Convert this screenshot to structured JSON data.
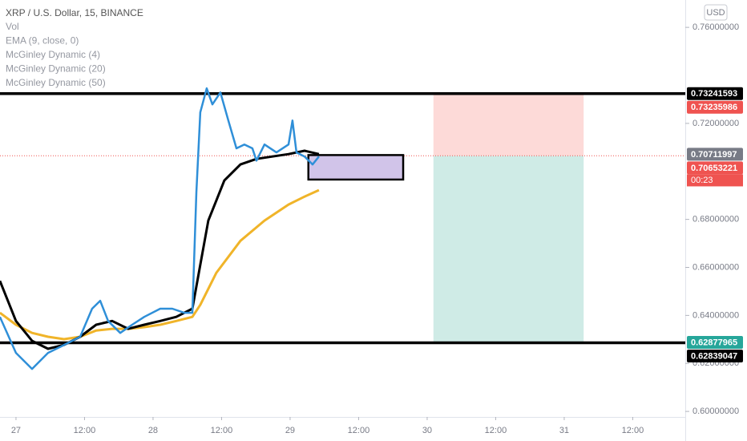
{
  "chart_data": {
    "type": "line",
    "title": "XRP / U.S. Dollar, 15, BINANCE",
    "studies": [
      "Vol",
      "EMA (9, close, 0)"
    ],
    "currency": "USD",
    "countdown": "00:23",
    "xlim": [
      -2.8,
      117.2
    ],
    "xticks": [
      {
        "value": 0,
        "label": "27"
      },
      {
        "value": 12,
        "label": "12:00"
      },
      {
        "value": 24,
        "label": "28"
      },
      {
        "value": 36,
        "label": "12:00"
      },
      {
        "value": 48,
        "label": "29"
      },
      {
        "value": 60,
        "label": "12:00"
      },
      {
        "value": 72,
        "label": "30"
      },
      {
        "value": 84,
        "label": "12:00"
      },
      {
        "value": 96,
        "label": "31"
      },
      {
        "value": 108,
        "label": "12:00"
      }
    ],
    "ylim": [
      0.5977,
      0.7714
    ],
    "yticks": [
      {
        "value": 0.76,
        "label": "0.76000000"
      },
      {
        "value": 0.72,
        "label": "0.72000000"
      },
      {
        "value": 0.68,
        "label": "0.68000000"
      },
      {
        "value": 0.66,
        "label": "0.66000000"
      },
      {
        "value": 0.64,
        "label": "0.64000000"
      },
      {
        "value": 0.62,
        "label": "0.62000000"
      },
      {
        "value": 0.6,
        "label": "0.60000000"
      }
    ],
    "series": [
      {
        "name": "McGinley Dynamic (4)",
        "color": "#2f8fd8",
        "width": 2.5,
        "x": [
          -2.81,
          0,
          2.81,
          5.61,
          8.42,
          11.23,
          13.33,
          14.74,
          16.14,
          18.25,
          20.35,
          22.46,
          25.26,
          27.37,
          29.47,
          30.88,
          31.58,
          32.28,
          33.4,
          34.39,
          35.79,
          37.19,
          38.6,
          40.0,
          41.4,
          42.11,
          43.51,
          45.61,
          47.72,
          48.42,
          49.12,
          50.53,
          51.93,
          53.05
        ],
        "values": [
          0.6394,
          0.6244,
          0.6177,
          0.6244,
          0.6277,
          0.6311,
          0.6428,
          0.6461,
          0.6377,
          0.6327,
          0.6361,
          0.6394,
          0.6428,
          0.6428,
          0.6411,
          0.6411,
          0.6912,
          0.7246,
          0.7346,
          0.7279,
          0.7329,
          0.7212,
          0.7096,
          0.7112,
          0.7096,
          0.7045,
          0.7112,
          0.7079,
          0.7112,
          0.7212,
          0.7079,
          0.7062,
          0.7029,
          0.7062
        ]
      },
      {
        "name": "McGinley Dynamic (20)",
        "color": "#000000",
        "width": 3,
        "x": [
          -2.81,
          0,
          2.81,
          5.61,
          8.42,
          11.23,
          14.04,
          16.84,
          19.65,
          22.46,
          25.26,
          28.07,
          30.88,
          32.28,
          33.68,
          36.49,
          39.3,
          42.11,
          44.91,
          47.72,
          50.53,
          53.05
        ],
        "values": [
          0.6544,
          0.6377,
          0.6294,
          0.6261,
          0.6277,
          0.6311,
          0.6361,
          0.6377,
          0.6344,
          0.6361,
          0.6377,
          0.6394,
          0.6428,
          0.6611,
          0.6795,
          0.6962,
          0.7029,
          0.7052,
          0.7062,
          0.7072,
          0.7086,
          0.7072
        ]
      },
      {
        "name": "McGinley Dynamic (50)",
        "color": "#f0b429",
        "width": 3,
        "x": [
          -2.81,
          0,
          2.81,
          5.61,
          8.42,
          11.23,
          14.04,
          16.84,
          19.65,
          22.46,
          25.26,
          28.07,
          30.88,
          32.28,
          35.09,
          39.3,
          43.51,
          47.72,
          50.53,
          53.05
        ],
        "values": [
          0.6411,
          0.6361,
          0.6327,
          0.6311,
          0.6301,
          0.6311,
          0.6337,
          0.6344,
          0.6344,
          0.6351,
          0.6361,
          0.6377,
          0.6394,
          0.6444,
          0.6578,
          0.6711,
          0.6795,
          0.6862,
          0.6895,
          0.6922
        ]
      }
    ],
    "hlines": [
      0.7324,
      0.6286
    ],
    "zone": {
      "x": [
        51.2,
        67.8
      ],
      "top": 0.7068,
      "bottom": 0.6966,
      "color": "#d1c4e9"
    },
    "position": {
      "x": [
        73.1,
        99.4
      ],
      "stop": 0.7324,
      "entry": 0.7065,
      "target": 0.6288,
      "stop_color": "#fddad8",
      "target_color": "#cfebe6"
    },
    "price_markers": [
      {
        "value": 0.73241593,
        "color": "#000000"
      },
      {
        "value": 0.73235986,
        "color": "#ef5350"
      },
      {
        "value": 0.70711997,
        "color": "#787b86"
      },
      {
        "value": 0.70653221,
        "color": "#ef5350"
      },
      {
        "value": 0.62877965,
        "color": "#26a69a"
      },
      {
        "value": 0.62839047,
        "color": "#000000"
      }
    ]
  }
}
